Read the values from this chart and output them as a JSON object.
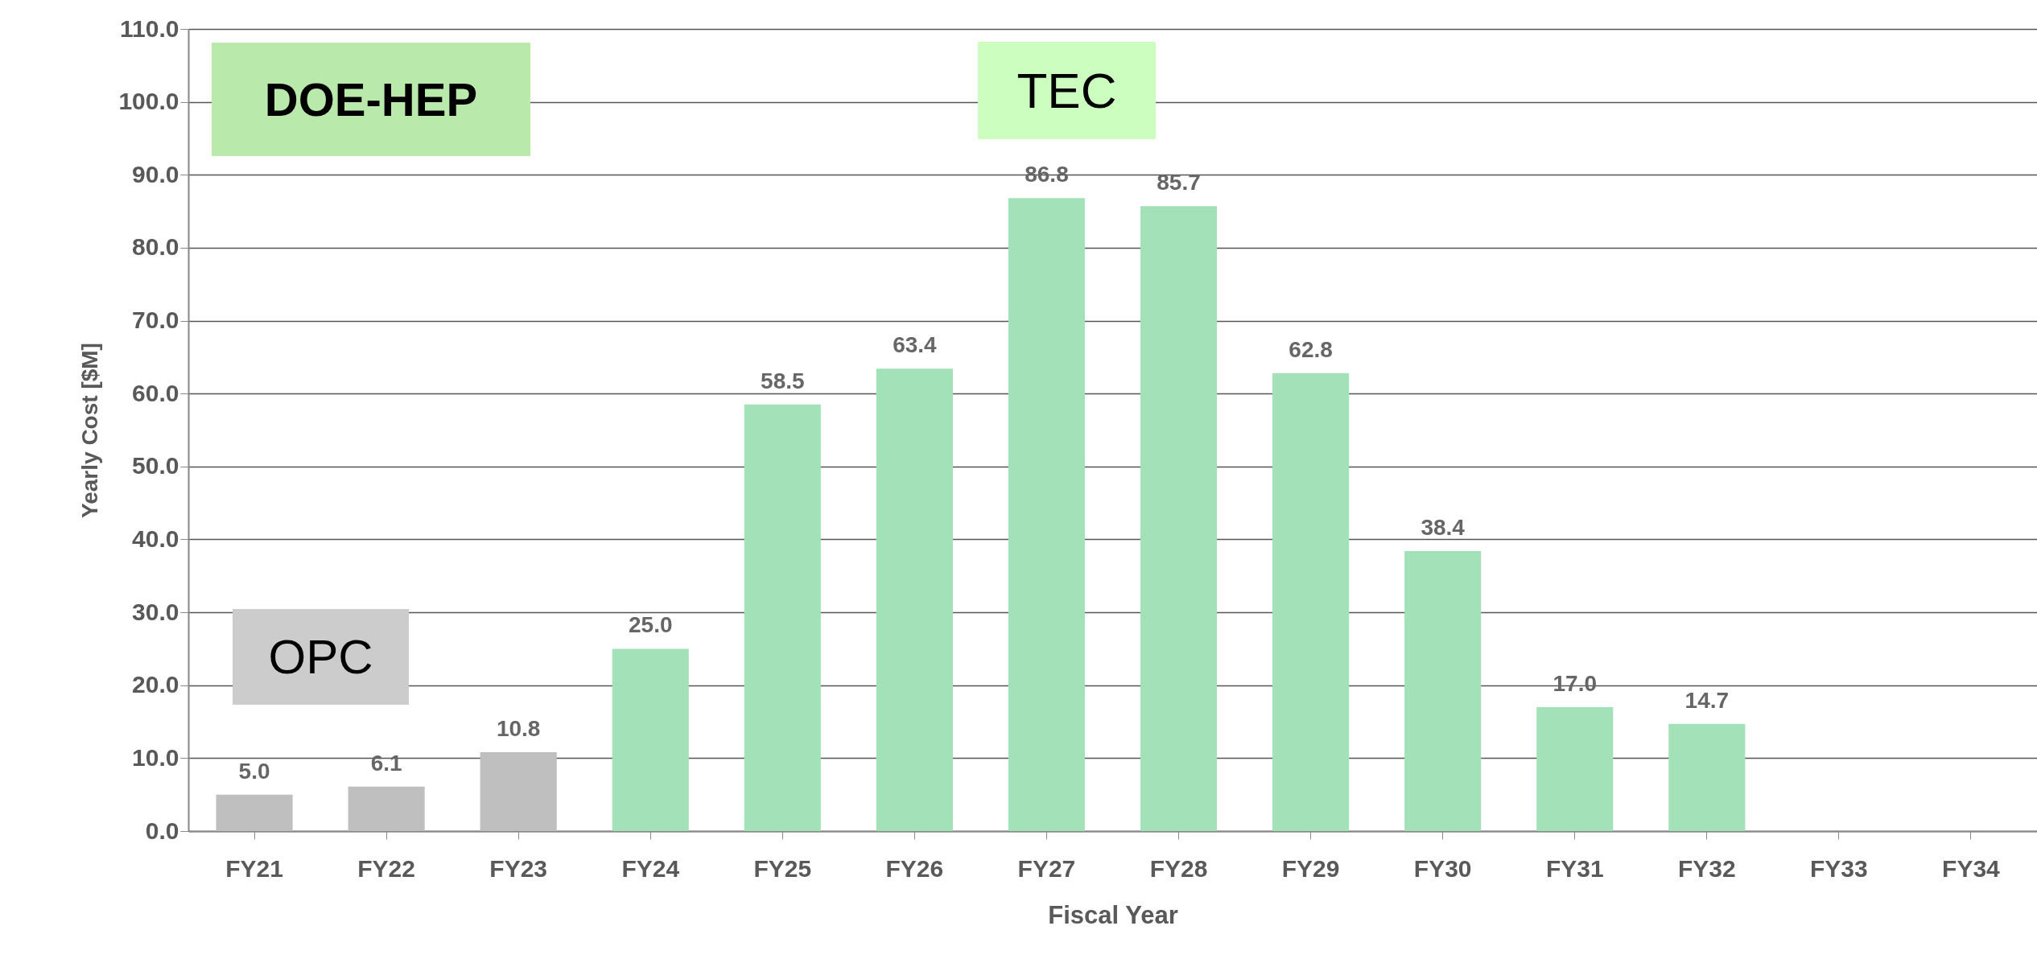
{
  "chart_data": {
    "type": "bar",
    "xlabel": "Fiscal Year",
    "ylabel": "Yearly Cost [$M]",
    "categories": [
      "FY21",
      "FY22",
      "FY23",
      "FY24",
      "FY25",
      "FY26",
      "FY27",
      "FY28",
      "FY29",
      "FY30",
      "FY31",
      "FY32",
      "FY33",
      "FY34"
    ],
    "values": [
      5.0,
      6.1,
      10.8,
      25.0,
      58.5,
      63.4,
      86.8,
      85.7,
      62.8,
      38.4,
      17.0,
      14.7,
      null,
      null
    ],
    "value_labels": [
      "5.0",
      "6.1",
      "10.8",
      "25.0",
      "58.5",
      "63.4",
      "86.8",
      "85.7",
      "62.8",
      "38.4",
      "17.0",
      "14.7",
      null,
      null
    ],
    "colors": [
      "#bfbfbf",
      "#bfbfbf",
      "#bfbfbf",
      "#a3e2b8",
      "#a3e2b8",
      "#a3e2b8",
      "#a3e2b8",
      "#a3e2b8",
      "#a3e2b8",
      "#a3e2b8",
      "#a3e2b8",
      "#a3e2b8",
      "#a3e2b8",
      "#a3e2b8"
    ],
    "ylim": [
      0,
      110
    ],
    "yticks": [
      {
        "value": 0,
        "label": "0.0"
      },
      {
        "value": 10,
        "label": "10.0"
      },
      {
        "value": 20,
        "label": "20.0"
      },
      {
        "value": 30,
        "label": "30.0"
      },
      {
        "value": 40,
        "label": "40.0"
      },
      {
        "value": 50,
        "label": "50.0"
      },
      {
        "value": 60,
        "label": "60.0"
      },
      {
        "value": 70,
        "label": "70.0"
      },
      {
        "value": 80,
        "label": "80.0"
      },
      {
        "value": 90,
        "label": "90.0"
      },
      {
        "value": 100,
        "label": "100.0"
      },
      {
        "value": 110,
        "label": "110.0"
      }
    ],
    "grid": "y",
    "annotations": [
      "DOE-HEP",
      "TEC",
      "OPC"
    ]
  }
}
